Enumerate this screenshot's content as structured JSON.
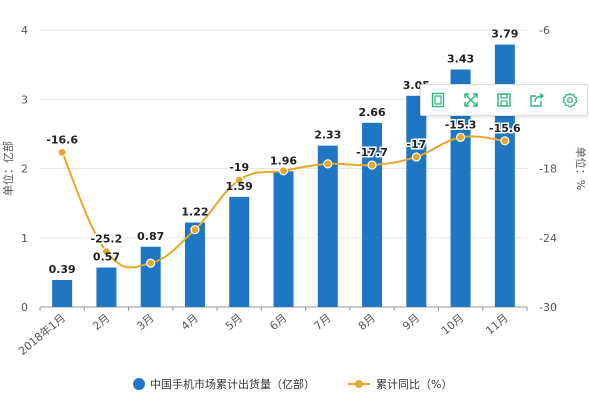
{
  "chart_data": {
    "type": "bar+line",
    "categories": [
      "2018年1月",
      "2月",
      "3月",
      "4月",
      "5月",
      "6月",
      "7月",
      "8月",
      "9月",
      "10月",
      "11月"
    ],
    "series": [
      {
        "name": "中国手机市场累计出货量（亿部）",
        "type": "bar",
        "axis": "left",
        "values": [
          0.39,
          0.57,
          0.87,
          1.22,
          1.59,
          1.96,
          2.33,
          2.66,
          3.05,
          3.43,
          3.79
        ],
        "labels": [
          "0.39",
          "0.57",
          "0.87",
          "1.22",
          "1.59",
          "1.96",
          "2.33",
          "2.66",
          "3.05",
          "3.43",
          "3.79"
        ],
        "color": "#1f77c4"
      },
      {
        "name": "累计同比（%）",
        "type": "line",
        "axis": "right",
        "values": [
          -16.6,
          -25.2,
          -26.2,
          -23.3,
          -19.0,
          -18.2,
          -17.6,
          -17.7,
          -17.0,
          -15.3,
          -15.6
        ],
        "labels": [
          "-16.6",
          "-25.2",
          "",
          "",
          "-19",
          "",
          "",
          "-17.7",
          "-17",
          "-15.3",
          "-15.6"
        ],
        "color": "#e6a82b"
      }
    ],
    "ylabel_left": "单位：亿部",
    "ylabel_right": "单位：%",
    "ylim_left": [
      0,
      4
    ],
    "ylim_right": [
      -30,
      -6
    ],
    "yticks_left": [
      "0",
      "1",
      "2",
      "3",
      "4"
    ],
    "yticks_right": [
      "-30",
      "-24",
      "-18",
      "-12",
      "-6"
    ],
    "grid": true,
    "legend": "bottom"
  },
  "toolbar": {
    "icons": [
      "data-view-icon",
      "zoom-icon",
      "save-icon",
      "share-icon",
      "settings-icon"
    ],
    "color": "#2bb67a"
  }
}
